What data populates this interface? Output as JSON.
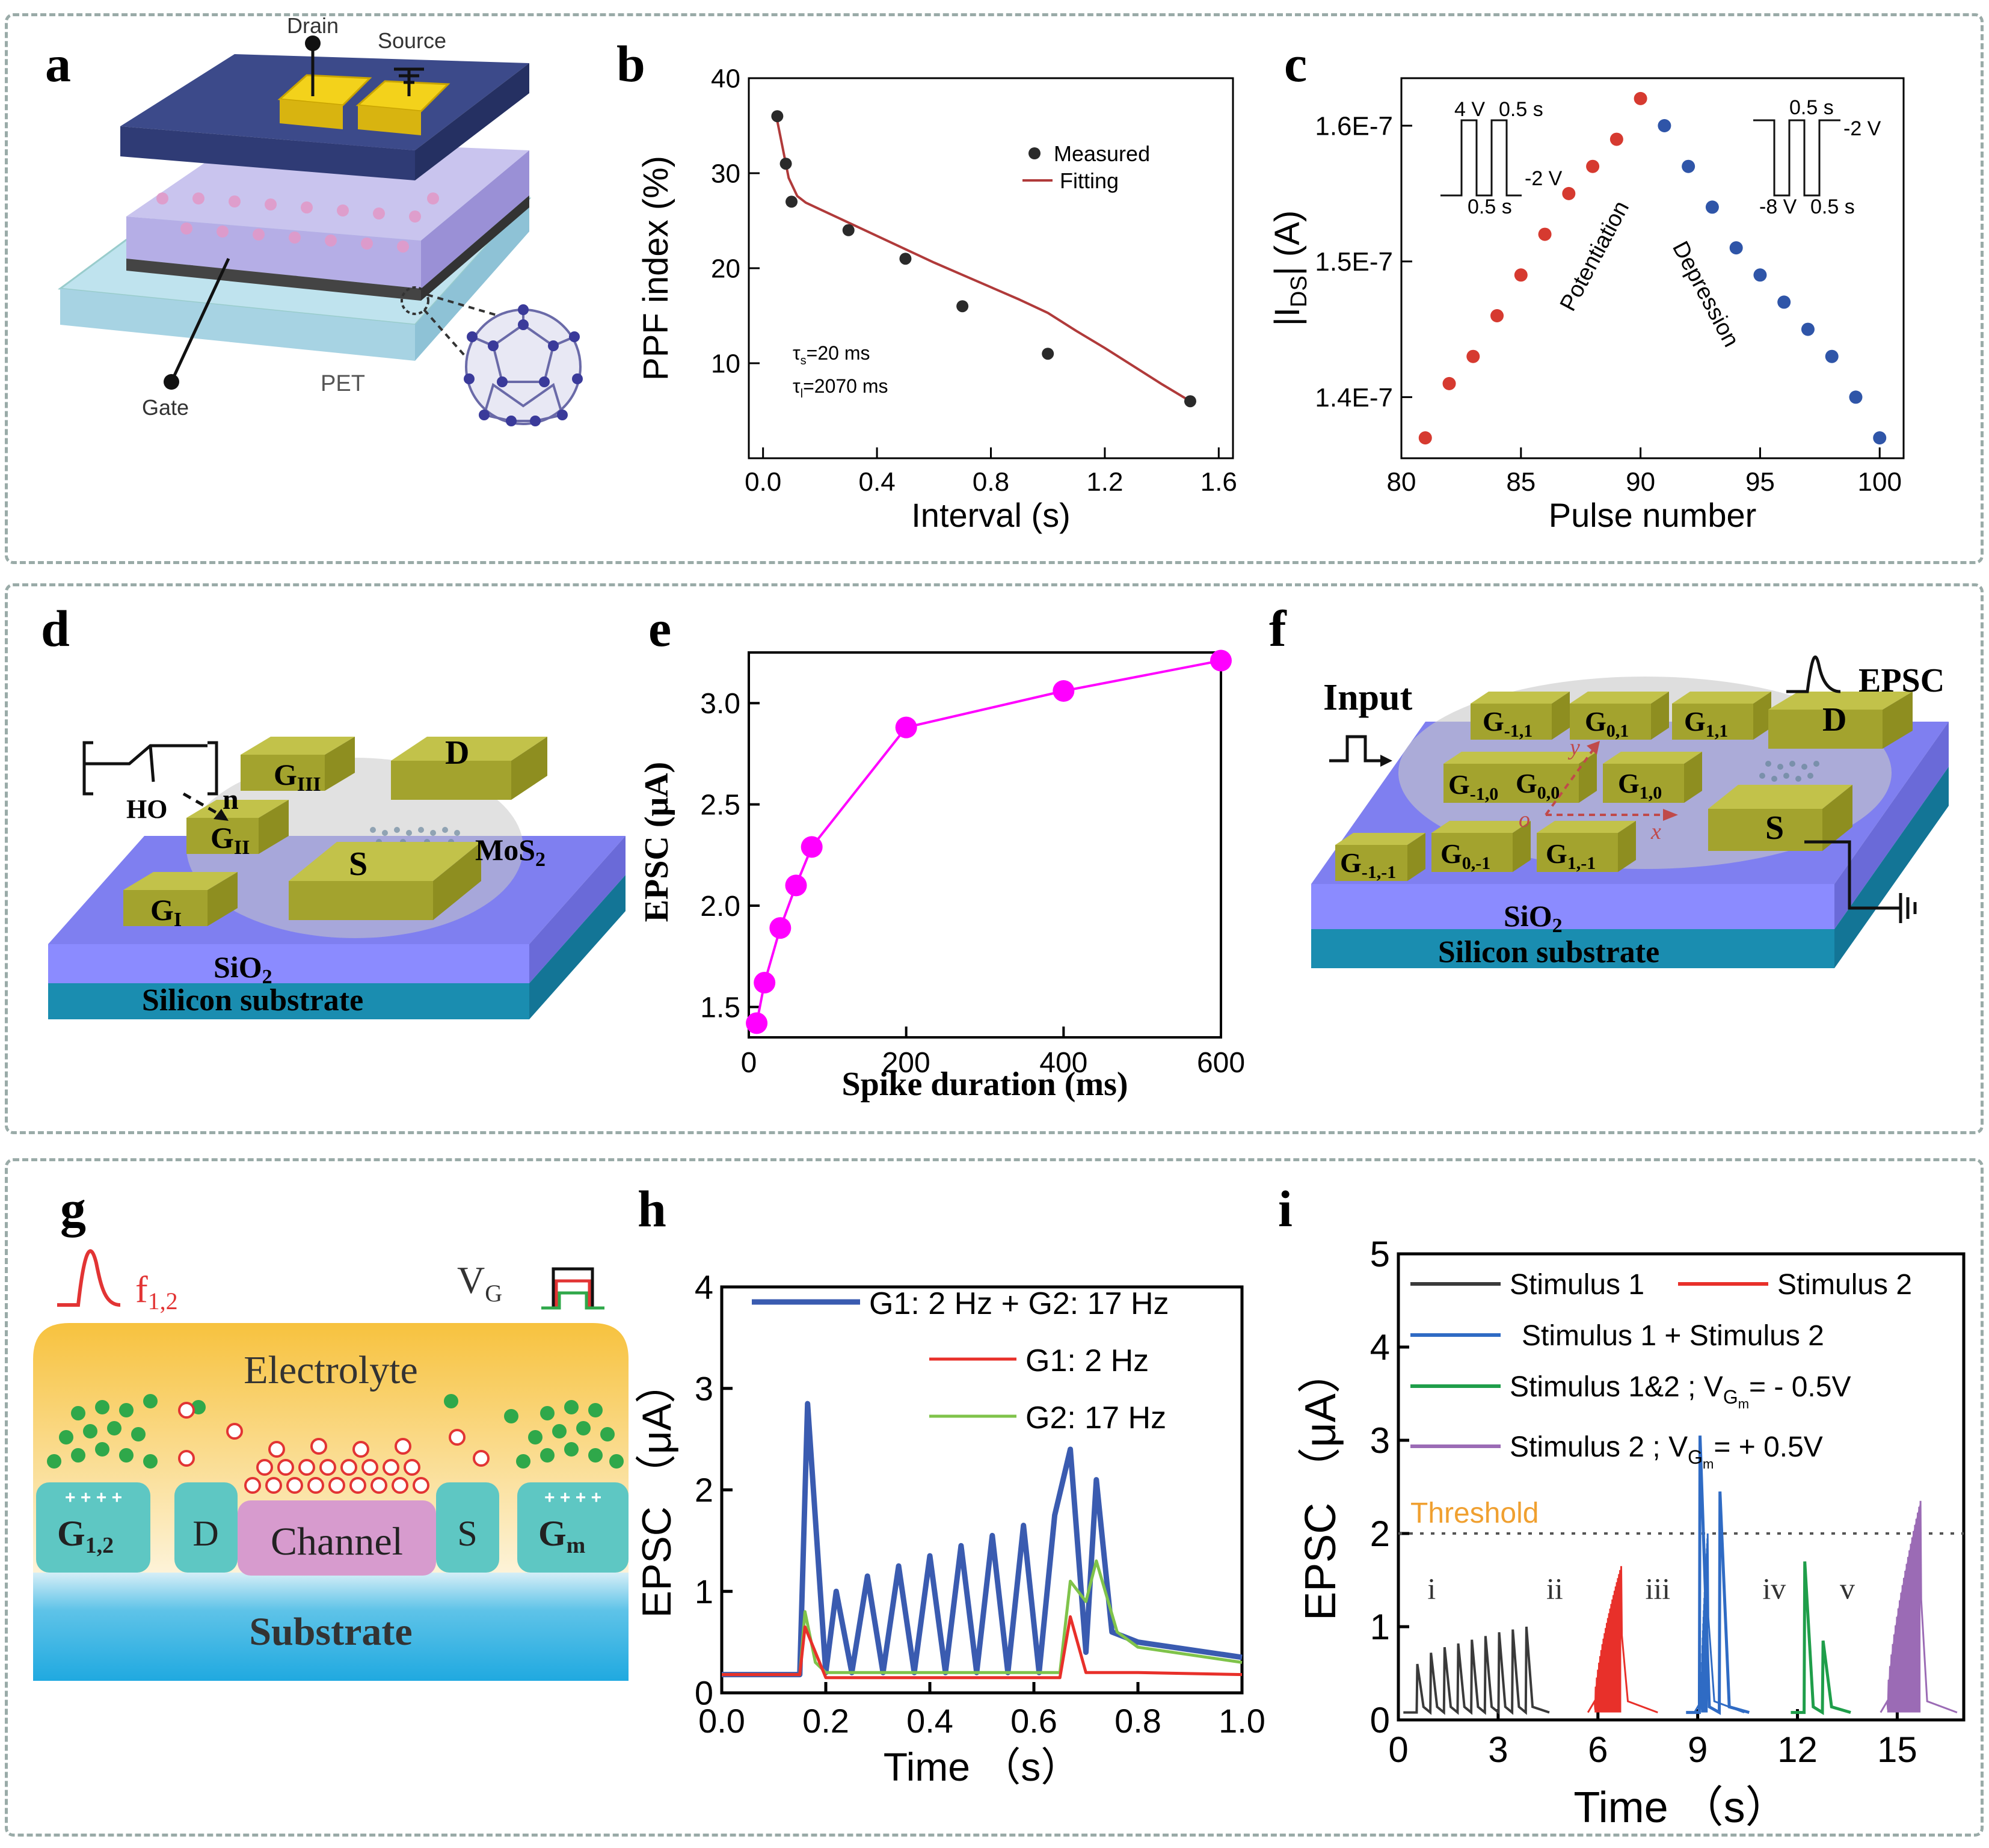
{
  "panel_labels": [
    "a",
    "b",
    "c",
    "d",
    "e",
    "f",
    "g",
    "h",
    "i"
  ],
  "panel_a": {
    "drain": "Drain",
    "source": "Source",
    "gate": "Gate",
    "substrate": "PET"
  },
  "panel_d": {
    "n": "n",
    "ho": "HO",
    "g3": "G",
    "g3_sub": "III",
    "g2": "G",
    "g2_sub": "II",
    "g1": "G",
    "g1_sub": "I",
    "d": "D",
    "s": "S",
    "mos2": "MoS",
    "mos2_sub": "2",
    "sio2": "SiO",
    "sio2_sub": "2",
    "si": "Silicon substrate"
  },
  "panel_f": {
    "input": "Input",
    "epsc": "EPSC",
    "d": "D",
    "s": "S",
    "sio2": "SiO",
    "sio2_sub": "2",
    "si": "Silicon substrate",
    "x": "x",
    "y": "y",
    "o": "o",
    "gates": [
      {
        "t": "G",
        "s": "-1,1"
      },
      {
        "t": "G",
        "s": "0,1"
      },
      {
        "t": "G",
        "s": "1,1"
      },
      {
        "t": "G",
        "s": "-1,0"
      },
      {
        "t": "G",
        "s": "0,0"
      },
      {
        "t": "G",
        "s": "1,0"
      },
      {
        "t": "G",
        "s": "-1,-1"
      },
      {
        "t": "G",
        "s": "0,-1"
      },
      {
        "t": "G",
        "s": "1,-1"
      }
    ]
  },
  "panel_g": {
    "f": "f",
    "f_sub": "1,2",
    "vg": "V",
    "vg_sub": "G",
    "electrolyte": "Electrolyte",
    "g12": "G",
    "g12_sub": "1,2",
    "d": "D",
    "channel": "Channel",
    "s": "S",
    "gm": "G",
    "gm_sub": "m",
    "substrate": "Substrate"
  },
  "colors": {
    "fitting": "#b03a3a",
    "measured": "#2a2a2a",
    "potentiation": "#d63a30",
    "depression": "#2f55a8",
    "epsc_e": "#ff00ff",
    "h_blue": "#3a5bb0",
    "h_red": "#e8302a",
    "h_green": "#7fc34a",
    "i_black": "#3a3a3a",
    "i_red": "#e8302a",
    "i_blue": "#2f6bc4",
    "i_green": "#1f9e4a",
    "i_purple": "#9b6bb5",
    "threshold": "#f0a030"
  },
  "chart_data": [
    {
      "panel": "b",
      "type": "scatter",
      "xlabel": "Interval (s)",
      "ylabel": "PPF index (%)",
      "xlim": [
        -0.05,
        1.65
      ],
      "ylim": [
        0,
        40
      ],
      "xticks": [
        "0.0",
        "0.4",
        "0.8",
        "1.2",
        "1.6"
      ],
      "yticks": [
        "10",
        "20",
        "30",
        "40"
      ],
      "series": [
        {
          "name": "Measured",
          "x": [
            0.05,
            0.08,
            0.1,
            0.3,
            0.5,
            0.7,
            1.0,
            1.5
          ],
          "y": [
            36,
            31,
            27,
            24,
            21,
            16,
            11,
            6
          ]
        },
        {
          "name": "Fitting",
          "x": [
            0.05,
            0.07,
            0.09,
            0.12,
            0.15,
            0.2,
            0.3,
            0.4,
            0.5,
            0.6,
            0.7,
            0.8,
            0.9,
            1.0,
            1.1,
            1.2,
            1.3,
            1.4,
            1.5
          ],
          "y": [
            35.5,
            32.5,
            29.5,
            27.6,
            26.9,
            26.2,
            24.8,
            23.4,
            22.0,
            20.6,
            19.3,
            18.0,
            16.7,
            15.3,
            13.4,
            11.6,
            9.7,
            7.8,
            6.0
          ]
        }
      ],
      "annotations": [
        {
          "t": "τ",
          "s": "s",
          "v": "=20 ms"
        },
        {
          "t": "τ",
          "s": "l",
          "v": "=2070 ms"
        }
      ]
    },
    {
      "panel": "c",
      "type": "scatter",
      "xlabel": "Pulse number",
      "ylabel": "|I",
      "ylabel_sub": "DS",
      "ylabel_end": "| (A)",
      "xlim": [
        80,
        101
      ],
      "ylim": [
        1.355e-07,
        1.635e-07
      ],
      "xticks": [
        "80",
        "85",
        "90",
        "95",
        "100"
      ],
      "yticks": [
        "1.4E-7",
        "1.5E-7",
        "1.6E-7"
      ],
      "series": [
        {
          "name": "Potentiation",
          "x": [
            81,
            82,
            83,
            84,
            85,
            86,
            87,
            88,
            89,
            90
          ],
          "y": [
            1.37e-07,
            1.41e-07,
            1.43e-07,
            1.46e-07,
            1.49e-07,
            1.52e-07,
            1.55e-07,
            1.57e-07,
            1.59e-07,
            1.62e-07
          ]
        },
        {
          "name": "Depression",
          "x": [
            91,
            92,
            93,
            94,
            95,
            96,
            97,
            98,
            99,
            100
          ],
          "y": [
            1.6e-07,
            1.57e-07,
            1.54e-07,
            1.51e-07,
            1.49e-07,
            1.47e-07,
            1.45e-07,
            1.43e-07,
            1.4e-07,
            1.37e-07
          ]
        }
      ],
      "inset_left": {
        "top_left": "4 V",
        "top_right": "0.5 s",
        "right": "-2 V",
        "bottom": "0.5 s"
      },
      "inset_right": {
        "top": "0.5 s",
        "right": "-2 V",
        "bottom_left": "-8 V",
        "bottom_right": "0.5 s"
      }
    },
    {
      "panel": "e",
      "type": "line",
      "xlabel": "Spike duration (ms)",
      "ylabel": "EPSC (μA)",
      "xlim": [
        0,
        600
      ],
      "ylim": [
        1.35,
        3.25
      ],
      "xticks": [
        "0",
        "200",
        "400",
        "600"
      ],
      "yticks": [
        "1.5",
        "2.0",
        "2.5",
        "3.0"
      ],
      "series": [
        {
          "name": "",
          "x": [
            10,
            20,
            40,
            60,
            80,
            200,
            400,
            600
          ],
          "y": [
            1.42,
            1.62,
            1.89,
            2.1,
            2.29,
            2.88,
            3.06,
            3.21
          ]
        }
      ]
    },
    {
      "panel": "h",
      "type": "line",
      "xlabel": "Time （s）",
      "ylabel": "EPSC （μA）",
      "xlim": [
        0,
        1.0
      ],
      "ylim": [
        0,
        4
      ],
      "xticks": [
        "0.0",
        "0.2",
        "0.4",
        "0.6",
        "0.8",
        "1.0"
      ],
      "yticks": [
        "0",
        "1",
        "2",
        "3",
        "4"
      ],
      "series": [
        {
          "name": "G1: 2 Hz + G2: 17 Hz",
          "x": [
            0,
            0.15,
            0.165,
            0.2,
            0.22,
            0.25,
            0.28,
            0.31,
            0.34,
            0.37,
            0.4,
            0.43,
            0.46,
            0.49,
            0.52,
            0.55,
            0.58,
            0.61,
            0.64,
            0.67,
            0.7,
            0.72,
            0.75,
            0.8,
            1.0
          ],
          "y": [
            0.18,
            0.18,
            2.85,
            0.2,
            1.0,
            0.2,
            1.15,
            0.2,
            1.25,
            0.2,
            1.35,
            0.2,
            1.45,
            0.2,
            1.55,
            0.2,
            1.65,
            0.2,
            1.75,
            2.4,
            0.4,
            2.1,
            0.6,
            0.5,
            0.35
          ]
        },
        {
          "name": "G1: 2 Hz",
          "x": [
            0,
            0.15,
            0.16,
            0.2,
            0.3,
            0.5,
            0.65,
            0.67,
            0.7,
            0.8,
            1.0
          ],
          "y": [
            0.18,
            0.18,
            0.65,
            0.15,
            0.15,
            0.15,
            0.15,
            0.75,
            0.2,
            0.2,
            0.18
          ]
        },
        {
          "name": "G2: 17 Hz",
          "x": [
            0,
            0.15,
            0.16,
            0.18,
            0.2,
            0.3,
            0.5,
            0.65,
            0.67,
            0.7,
            0.72,
            0.76,
            0.8,
            1.0
          ],
          "y": [
            0.18,
            0.18,
            0.8,
            0.3,
            0.2,
            0.2,
            0.2,
            0.2,
            1.1,
            0.9,
            1.3,
            0.6,
            0.45,
            0.3
          ]
        }
      ]
    },
    {
      "panel": "i",
      "type": "line",
      "xlabel": "Time （s）",
      "ylabel": "EPSC （μA）",
      "xlim": [
        0,
        17
      ],
      "ylim": [
        0,
        5
      ],
      "xticks": [
        "0",
        "3",
        "6",
        "9",
        "12",
        "15"
      ],
      "yticks": [
        "0",
        "1",
        "2",
        "3",
        "4",
        "5"
      ],
      "threshold": {
        "label": "Threshold",
        "value": 2.0
      },
      "segment_labels": [
        "i",
        "ii",
        "iii",
        "iv",
        "v"
      ],
      "series": [
        {
          "name": "Stimulus 1",
          "peaks": [
            0.6,
            0.72,
            0.78,
            0.82,
            0.86,
            0.9,
            0.94,
            0.97,
            1.0
          ]
        },
        {
          "name": "Stimulus 2",
          "peak": 1.65
        },
        {
          "name": "Stimulus 1 +  Stimulus 2",
          "peaks": [
            3.05,
            2.45
          ]
        },
        {
          "name": "Stimulus 1&2 ;  V",
          "name_sub": "G",
          "name_subsub": "m",
          "name_end": "= - 0.5V",
          "peaks": [
            1.7,
            0.85
          ]
        },
        {
          "name": "Stimulus 2 ; V",
          "name_sub": "G",
          "name_subsub": "m",
          "name_end": "= + 0.5V",
          "peak": 2.35
        }
      ]
    }
  ]
}
